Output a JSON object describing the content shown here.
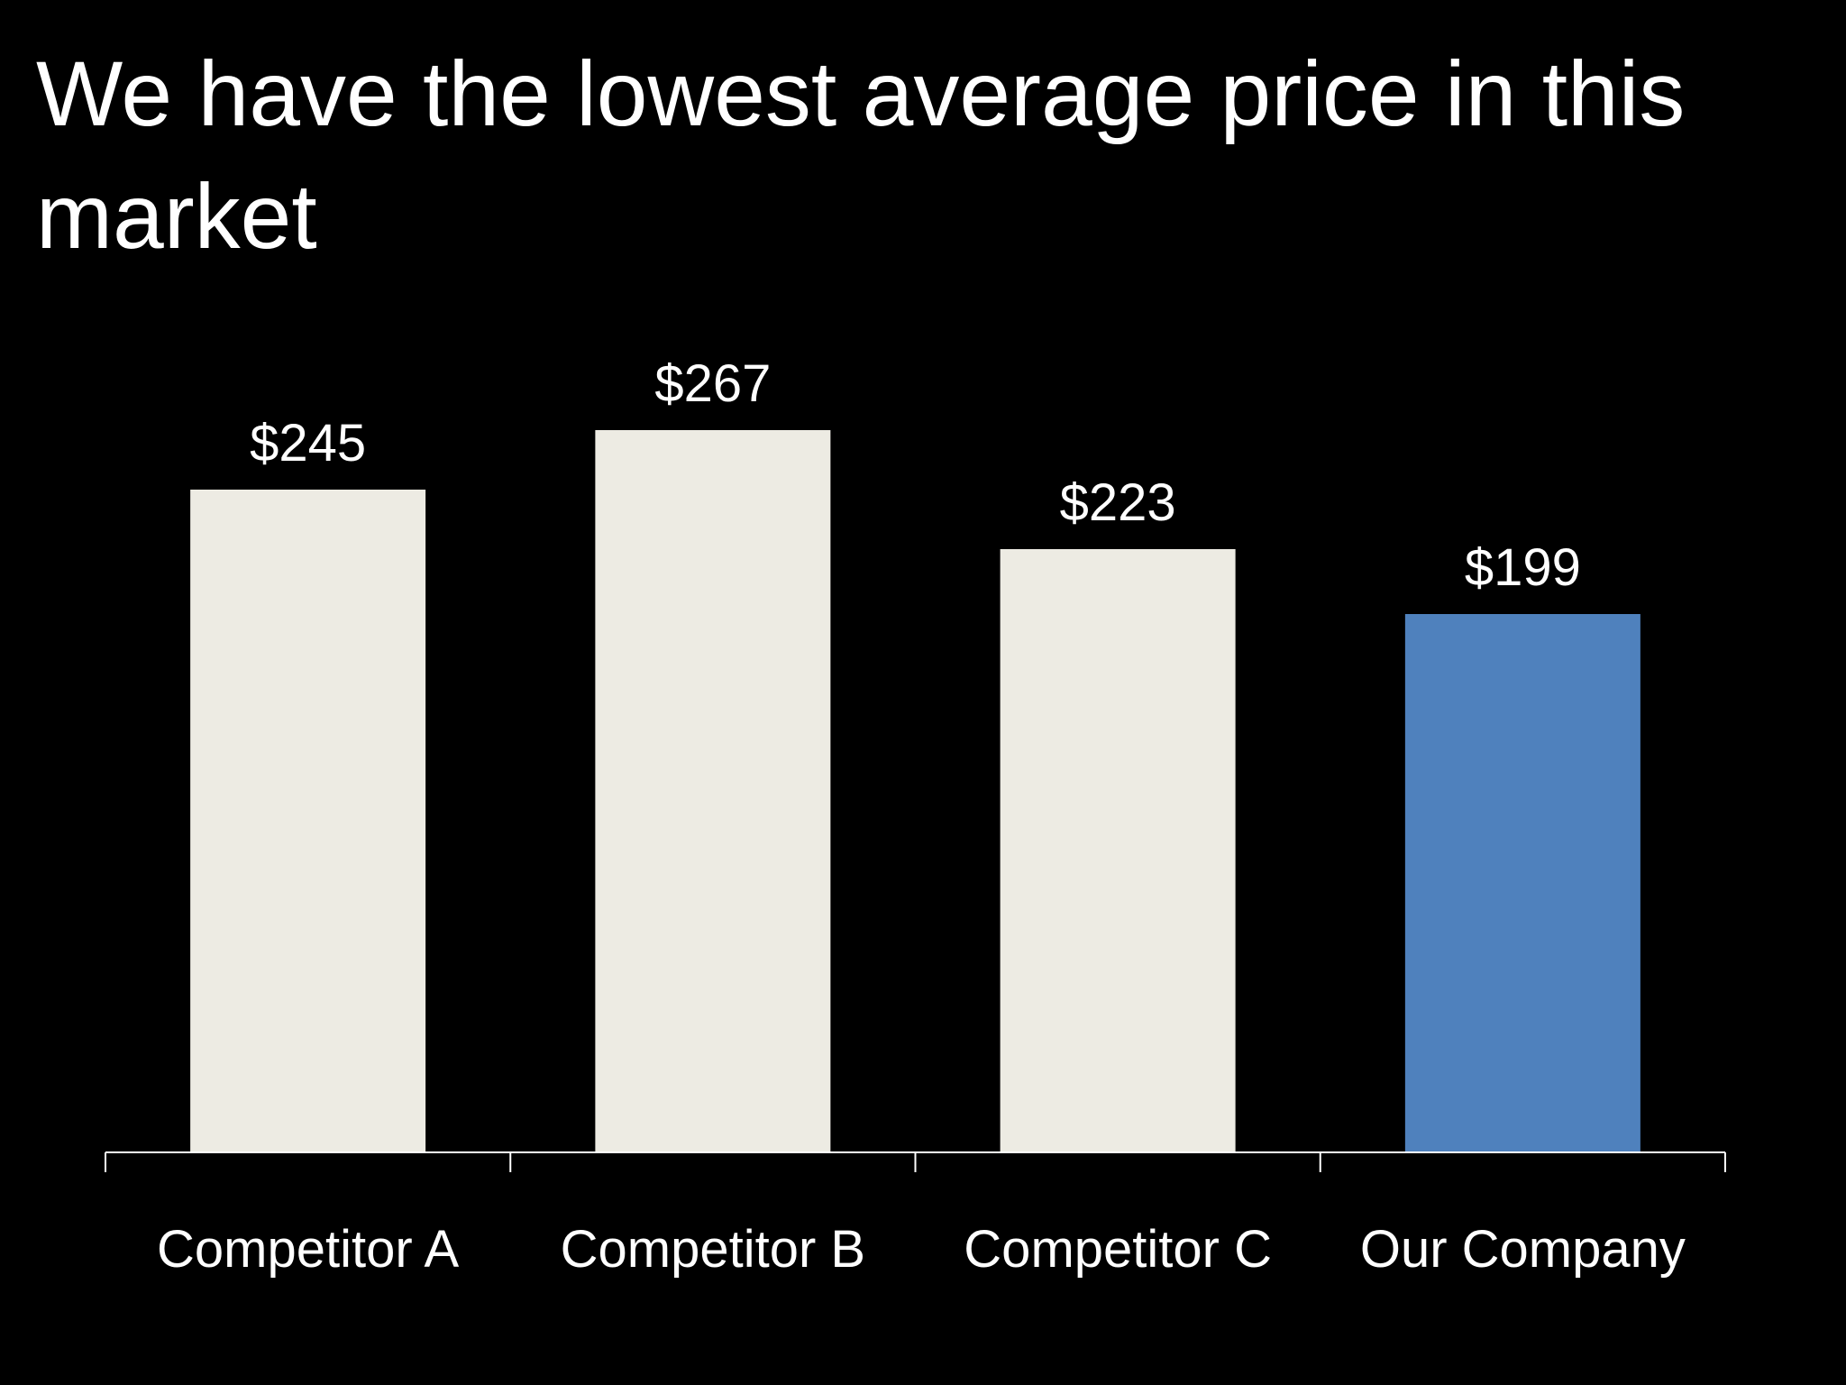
{
  "slide": {
    "title": "We have the lowest average price in this market"
  },
  "chart_data": {
    "type": "bar",
    "title": "",
    "xlabel": "",
    "ylabel": "",
    "categories": [
      "Competitor A",
      "Competitor B",
      "Competitor C",
      "Our Company"
    ],
    "values": [
      245,
      267,
      223,
      199
    ],
    "data_labels": [
      "$245",
      "$267",
      "$223",
      "$199"
    ],
    "unit_prefix": "$",
    "ylim": [
      0,
      300
    ],
    "grid": false,
    "legend": "none",
    "y_axis_visible": false,
    "colors": {
      "background": "#000000",
      "default_bar": "#EDEBE3",
      "highlight_bar": "#4F81BD",
      "text": "#FFFFFF",
      "axis": "#FFFFFF"
    },
    "highlight_category": "Our Company"
  }
}
